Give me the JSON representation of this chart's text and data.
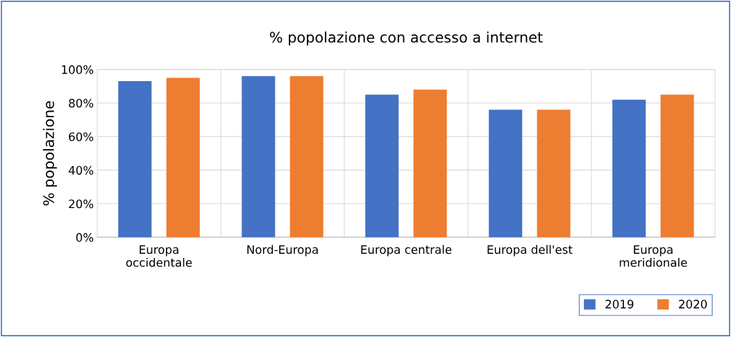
{
  "chart_data": {
    "type": "bar",
    "title": "% popolazione con accesso a internet",
    "ylabel": "% popolazione",
    "categories": [
      "Europa\noccidentale",
      "Nord-Europa",
      "Europa centrale",
      "Europa dell'est",
      "Europa\nmeridionale"
    ],
    "series": [
      {
        "name": "2019",
        "color": "#4472c4",
        "values": [
          93,
          96,
          85,
          76,
          82
        ]
      },
      {
        "name": "2020",
        "color": "#ed7d31",
        "values": [
          95,
          96,
          88,
          76,
          85
        ]
      }
    ],
    "ylim": [
      0,
      100
    ],
    "yticks": [
      {
        "value": 0,
        "label": "0%"
      },
      {
        "value": 20,
        "label": "20%"
      },
      {
        "value": 40,
        "label": "40%"
      },
      {
        "value": 60,
        "label": "60%"
      },
      {
        "value": 80,
        "label": "80%"
      },
      {
        "value": 100,
        "label": "100%"
      }
    ],
    "grid": true,
    "legend": "bottom right"
  }
}
